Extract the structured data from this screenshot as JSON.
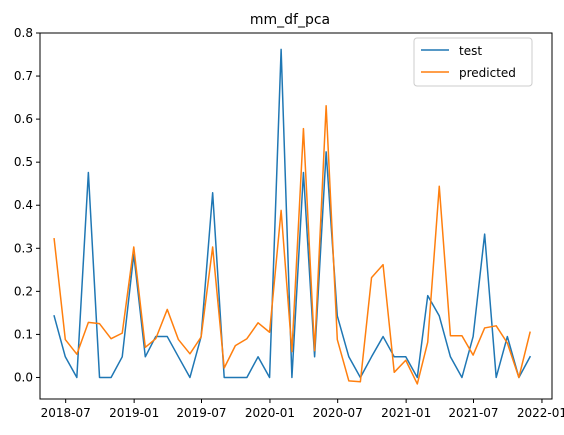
{
  "chart_data": {
    "type": "line",
    "title": "mm_df_pca",
    "xlabel": "",
    "ylabel": "",
    "ylim": [
      -0.05,
      0.8
    ],
    "xlim": [
      "2018-04-23",
      "2022-01-28"
    ],
    "grid": false,
    "legend_position": "top-right",
    "x_tick_labels": [
      "2018-07",
      "2019-01",
      "2019-07",
      "2020-01",
      "2020-07",
      "2021-01",
      "2021-07",
      "2022-01"
    ],
    "y_tick_labels": [
      "0.0",
      "0.1",
      "0.2",
      "0.3",
      "0.4",
      "0.5",
      "0.6",
      "0.7",
      "0.8"
    ],
    "x": [
      "2018-05-31",
      "2018-06-30",
      "2018-07-31",
      "2018-08-31",
      "2018-09-30",
      "2018-10-31",
      "2018-11-30",
      "2018-12-31",
      "2019-01-31",
      "2019-02-28",
      "2019-03-31",
      "2019-04-30",
      "2019-05-31",
      "2019-06-30",
      "2019-07-31",
      "2019-08-31",
      "2019-09-30",
      "2019-10-31",
      "2019-11-30",
      "2019-12-31",
      "2020-01-31",
      "2020-02-29",
      "2020-03-31",
      "2020-04-30",
      "2020-05-31",
      "2020-06-30",
      "2020-07-31",
      "2020-08-31",
      "2020-09-30",
      "2020-10-31",
      "2020-11-30",
      "2020-12-31",
      "2021-01-31",
      "2021-02-28",
      "2021-03-31",
      "2021-04-30",
      "2021-05-31",
      "2021-06-30",
      "2021-07-31",
      "2021-08-31",
      "2021-09-30",
      "2021-10-31",
      "2021-11-30"
    ],
    "series": [
      {
        "name": "test",
        "color": "#1f77b4",
        "values": [
          0.143,
          0.048,
          0.0,
          0.476,
          0.0,
          0.0,
          0.048,
          0.286,
          0.048,
          0.095,
          0.095,
          0.048,
          0.0,
          0.095,
          0.429,
          0.0,
          0.0,
          0.0,
          0.048,
          0.0,
          0.762,
          0.0,
          0.476,
          0.048,
          0.524,
          0.143,
          0.048,
          0.0,
          0.048,
          0.095,
          0.048,
          0.048,
          0.0,
          0.19,
          0.143,
          0.048,
          0.0,
          0.095,
          0.333,
          0.0,
          0.095,
          0.0,
          0.048
        ]
      },
      {
        "name": "predicted",
        "color": "#ff7f0e",
        "values": [
          0.322,
          0.088,
          0.054,
          0.128,
          0.125,
          0.09,
          0.103,
          0.303,
          0.07,
          0.09,
          0.158,
          0.088,
          0.055,
          0.094,
          0.303,
          0.022,
          0.074,
          0.09,
          0.127,
          0.105,
          0.388,
          0.06,
          0.578,
          0.062,
          0.631,
          0.088,
          -0.008,
          -0.01,
          0.232,
          0.262,
          0.012,
          0.04,
          -0.015,
          0.082,
          0.444,
          0.097,
          0.097,
          0.052,
          0.115,
          0.12,
          0.08,
          0.0,
          0.105
        ]
      }
    ]
  }
}
